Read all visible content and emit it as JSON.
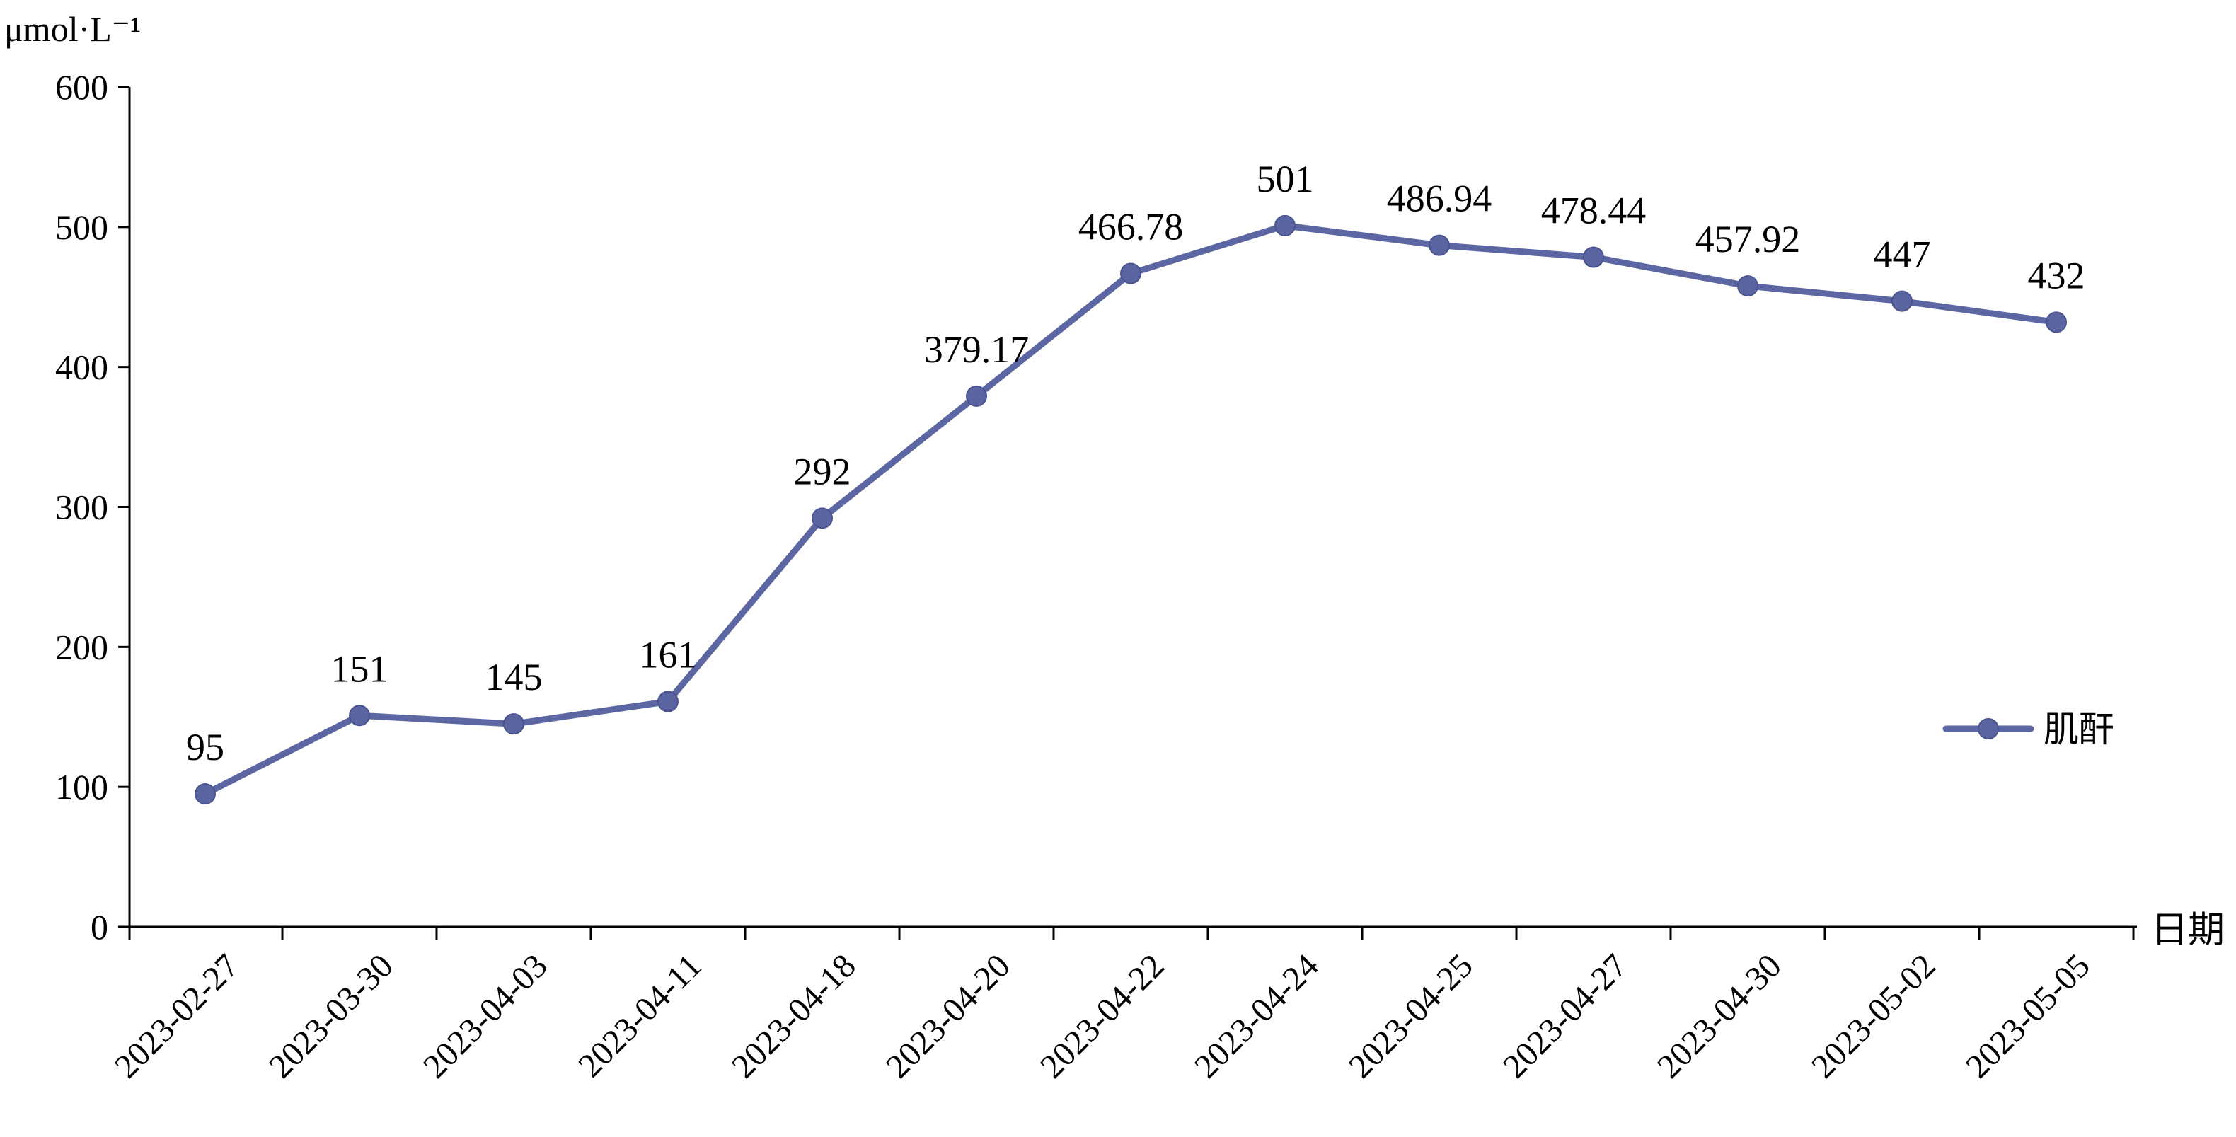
{
  "chart_data": {
    "type": "line",
    "title": "",
    "ylabel": "μmol·L⁻¹",
    "xlabel": "日期",
    "ylim": [
      0,
      600
    ],
    "yticks": [
      0,
      100,
      200,
      300,
      400,
      500,
      600
    ],
    "categories": [
      "2023-02-27",
      "2023-03-30",
      "2023-04-03",
      "2023-04-11",
      "2023-04-18",
      "2023-04-20",
      "2023-04-22",
      "2023-04-24",
      "2023-04-25",
      "2023-04-27",
      "2023-04-30",
      "2023-05-02",
      "2023-05-05"
    ],
    "series": [
      {
        "name": "肌酐",
        "values": [
          95,
          151,
          145,
          161,
          292,
          379.17,
          466.78,
          501,
          486.94,
          478.44,
          457.92,
          447,
          432
        ],
        "data_labels": [
          "95",
          "151",
          "145",
          "161",
          "292",
          "379.17",
          "466.78",
          "501",
          "486.94",
          "478.44",
          "457.92",
          "447",
          "432"
        ]
      }
    ],
    "grid": false,
    "legend_position": "right",
    "colors": {
      "series": "#5b66a2",
      "marker": "#5a64a0",
      "axis": "#000000"
    }
  }
}
